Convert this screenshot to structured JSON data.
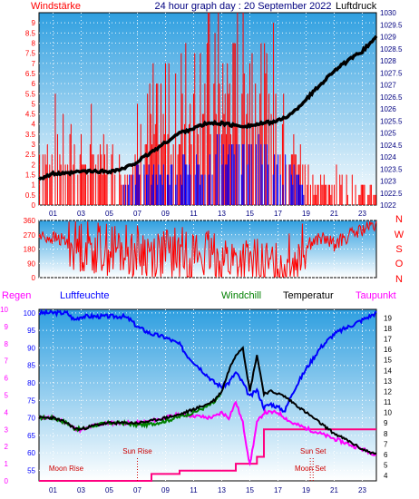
{
  "header": {
    "left_label": "Windstärke",
    "title": "24 hour graph day : 20 September 2022",
    "right_label": "Luftdruck"
  },
  "legend": {
    "regen": "Regen",
    "luftfeuchte": "Luftfeuchte",
    "windchill": "Windchill",
    "temperatur": "Temperatur",
    "taupunkt": "Taupunkt"
  },
  "colors": {
    "wind": "#ff0000",
    "gust_bars": "#ff0000",
    "calm_bars": "#0000ff",
    "pressure": "#000000",
    "direction": "#ff0000",
    "humidity": "#0000ff",
    "temperature": "#000000",
    "windchill": "#008000",
    "dewpoint": "#ff00ff",
    "rain": "#ff0080",
    "axis_red": "#ff0000",
    "axis_blue": "#000080",
    "bg_top": "#2f9fe0",
    "bg_bottom": "#ffffff"
  },
  "chart_data": [
    {
      "id": "wind-pressure",
      "type": "bar",
      "title": "24 hour graph day : 20 September 2022",
      "x_ticks": [
        "01",
        "03",
        "05",
        "07",
        "09",
        "11",
        "13",
        "15",
        "17",
        "19",
        "21",
        "23"
      ],
      "xlim": [
        0,
        24
      ],
      "y_left": {
        "label": "Windstärke",
        "ticks": [
          "0",
          "0.5",
          "1",
          "1.5",
          "2",
          "2.5",
          "3",
          "3.5",
          "4",
          "4.5",
          "5",
          "5.5",
          "6",
          "6.5",
          "7",
          "7.5",
          "8",
          "8.5",
          "9"
        ],
        "lim": [
          0,
          9.5
        ]
      },
      "y_right": {
        "label": "Luftdruck",
        "ticks": [
          "1022",
          "1022.5",
          "1023",
          "1023.5",
          "1024",
          "1024.5",
          "1025",
          "1025.5",
          "1026",
          "1026.5",
          "1027",
          "1027.5",
          "1028",
          "1028.5",
          "1029",
          "1029.5",
          "1030"
        ],
        "lim": [
          1022,
          1030
        ]
      },
      "pressure": {
        "x": [
          0,
          1,
          2,
          3,
          4,
          5,
          6,
          7,
          8,
          9,
          10,
          11,
          12,
          13,
          14,
          15,
          16,
          17,
          18,
          19,
          20,
          21,
          22,
          23,
          24
        ],
        "y": [
          1023.1,
          1023.3,
          1023.3,
          1023.4,
          1023.4,
          1023.4,
          1023.5,
          1023.8,
          1024.2,
          1024.6,
          1025.0,
          1025.2,
          1025.4,
          1025.4,
          1025.3,
          1025.3,
          1025.4,
          1025.5,
          1025.8,
          1026.4,
          1027.0,
          1027.6,
          1028.0,
          1028.4,
          1029.0
        ]
      },
      "wind_gust_profile": {
        "x": [
          0,
          2,
          4,
          6,
          8,
          10,
          11,
          12,
          13,
          14,
          15,
          16,
          17,
          18,
          19,
          20,
          22,
          24
        ],
        "y": [
          2.5,
          2.5,
          2.2,
          2.0,
          3.2,
          3.8,
          5.5,
          6.0,
          5.0,
          6.0,
          6.5,
          5.5,
          4.5,
          2.8,
          1.8,
          0.8,
          1.2,
          0.5
        ]
      },
      "calm_profile": {
        "x": [
          0,
          3,
          6,
          7,
          9,
          11,
          12,
          13,
          14,
          15,
          16,
          17,
          18,
          19,
          24
        ],
        "y": [
          0.8,
          0.8,
          1.0,
          1.5,
          1.5,
          2.0,
          2.0,
          2.8,
          2.0,
          3.0,
          2.5,
          2.0,
          1.8,
          0.3,
          0.2
        ]
      }
    },
    {
      "id": "wind-direction",
      "type": "line",
      "x_ticks": [
        "01",
        "03",
        "05",
        "07",
        "09",
        "11",
        "13",
        "15",
        "17",
        "19",
        "21",
        "23"
      ],
      "xlim": [
        0,
        24
      ],
      "y_left": {
        "ticks": [
          "0",
          "90",
          "180",
          "270",
          "360"
        ],
        "lim": [
          0,
          360
        ]
      },
      "y_right_labels": [
        "N",
        "W",
        "S",
        "O",
        "N"
      ],
      "direction_profile": {
        "x": [
          0,
          1,
          2,
          3,
          5,
          7,
          9,
          11,
          13,
          15,
          17,
          18,
          19,
          20,
          21,
          22,
          23,
          24
        ],
        "y": [
          260,
          250,
          230,
          200,
          180,
          160,
          150,
          150,
          120,
          80,
          60,
          120,
          200,
          250,
          210,
          260,
          300,
          330
        ]
      }
    },
    {
      "id": "temperature-humidity",
      "type": "line",
      "x_ticks": [
        "01",
        "03",
        "05",
        "07",
        "09",
        "11",
        "13",
        "15",
        "17",
        "19",
        "21",
        "23"
      ],
      "xlim": [
        0,
        24
      ],
      "y_left_outer": {
        "label": "Regen",
        "ticks": [
          "0",
          "1",
          "2",
          "3",
          "4",
          "5",
          "6",
          "7",
          "8",
          "9",
          "10"
        ],
        "lim": [
          0,
          10
        ]
      },
      "y_left_inner": {
        "label": "Luftfeuchte",
        "ticks": [
          "55",
          "60",
          "65",
          "70",
          "75",
          "80",
          "85",
          "90",
          "95",
          "100"
        ],
        "lim": [
          52,
          101
        ]
      },
      "y_right": {
        "ticks": [
          "4",
          "5",
          "6",
          "7",
          "8",
          "9",
          "10",
          "11",
          "12",
          "13",
          "14",
          "15",
          "16",
          "17",
          "18",
          "19"
        ],
        "lim": [
          3.5,
          19.8
        ]
      },
      "humidity": {
        "x": [
          0,
          1,
          2,
          2.5,
          3,
          4,
          5,
          6,
          6.5,
          7,
          8,
          9,
          10,
          10.5,
          11,
          12,
          12.5,
          13,
          13.5,
          14,
          14.5,
          15,
          15.5,
          16,
          16.5,
          17,
          17.5,
          18,
          19,
          20,
          21,
          22,
          23,
          24
        ],
        "y": [
          100,
          100,
          100,
          98,
          99,
          99,
          99,
          99,
          98,
          96,
          94,
          93,
          91,
          88,
          86,
          82,
          80,
          79,
          80,
          83,
          80,
          76,
          78,
          73,
          74,
          73,
          72,
          77,
          84,
          90,
          94,
          96,
          98,
          100
        ]
      },
      "temperature": {
        "x": [
          0,
          1,
          2,
          2.5,
          3,
          4,
          5,
          6,
          7,
          8,
          9,
          10,
          11,
          12,
          12.5,
          13,
          13.5,
          14,
          14.5,
          15,
          15.5,
          16,
          16.5,
          17,
          17.5,
          18,
          19,
          20,
          21,
          22,
          23,
          24
        ],
        "y": [
          9.5,
          9.5,
          9.0,
          8.5,
          8.4,
          8.8,
          9.0,
          9.0,
          9.0,
          9.2,
          9.5,
          9.8,
          10.3,
          10.8,
          11.2,
          12.0,
          14.0,
          15.5,
          16.2,
          12.0,
          15.5,
          11.8,
          12.0,
          11.8,
          11.5,
          11.0,
          10.0,
          9.0,
          8.0,
          7.3,
          6.5,
          6.0
        ]
      },
      "windchill": {
        "x": [
          0,
          1,
          2,
          2.5,
          3,
          4,
          5,
          6,
          7,
          8,
          9,
          10,
          11,
          12,
          12.5,
          13
        ],
        "y": [
          9.5,
          9.5,
          9.0,
          8.5,
          8.4,
          8.8,
          9.0,
          9.0,
          8.8,
          8.9,
          9.2,
          9.6,
          10.0,
          10.6,
          11.0,
          11.8
        ]
      },
      "dewpoint": {
        "x": [
          0,
          1,
          2,
          2.5,
          3,
          4,
          5,
          6,
          7,
          8,
          9,
          10,
          11,
          12,
          12.5,
          13,
          13.5,
          14,
          14.5,
          15,
          15.5,
          16,
          17,
          18,
          19,
          20,
          21,
          22,
          23,
          24
        ],
        "y": [
          9.5,
          9.5,
          9.0,
          8.5,
          8.3,
          8.8,
          9.0,
          9.0,
          9.0,
          9.2,
          9.5,
          9.8,
          9.7,
          9.5,
          9.6,
          10.0,
          9.5,
          11.0,
          9.0,
          5.0,
          9.0,
          10.0,
          10.0,
          9.0,
          8.5,
          8.0,
          7.5,
          7.0,
          6.5,
          6.0
        ]
      },
      "rain_cumulative": {
        "x": [
          0,
          5,
          6,
          7,
          8,
          9,
          10,
          11,
          12,
          13,
          14,
          15,
          15.5,
          16,
          17,
          18,
          19,
          20,
          21,
          22,
          23,
          24
        ],
        "y": [
          0,
          0,
          0,
          0,
          0.4,
          0.4,
          0.6,
          0.6,
          0.6,
          0.6,
          1.0,
          1.0,
          1.4,
          3.0,
          3.0,
          3.0,
          3.0,
          3.0,
          3.0,
          3.0,
          3.0,
          3.0
        ]
      },
      "annotations": [
        {
          "name": "moon-rise",
          "label": "Moon Rise",
          "x": 0.0
        },
        {
          "name": "sun-rise",
          "label": "Sun Rise",
          "x": 7.0
        },
        {
          "name": "moon-set",
          "label": "Moon Set",
          "x": 19.3
        },
        {
          "name": "sun-set",
          "label": "Sun Set",
          "x": 19.5
        }
      ]
    }
  ]
}
